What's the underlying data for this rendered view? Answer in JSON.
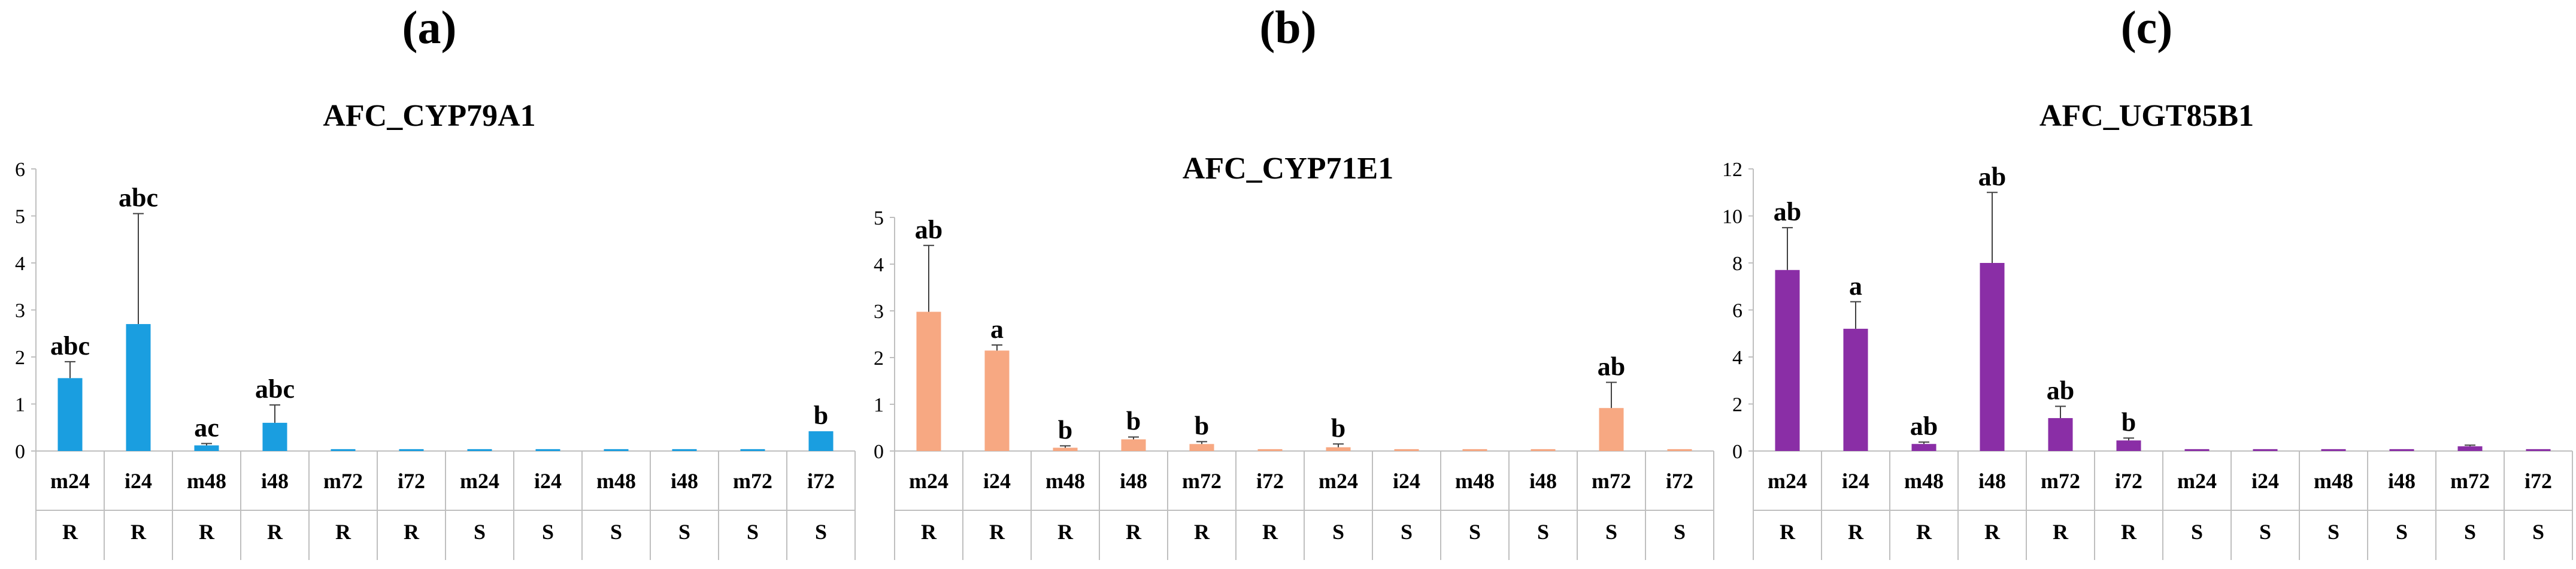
{
  "chart_data": [
    {
      "type": "bar",
      "panel_label": "(a)",
      "title": "AFC_CYP79A1",
      "color": "#1a9ee0",
      "ylim": [
        0,
        6
      ],
      "yticks": [
        0,
        1,
        2,
        3,
        4,
        5,
        6
      ],
      "categories": [
        "m24",
        "i24",
        "m48",
        "i48",
        "m72",
        "i72",
        "m24",
        "i24",
        "m48",
        "i48",
        "m72",
        "i72"
      ],
      "groups": [
        "R",
        "R",
        "R",
        "R",
        "R",
        "R",
        "S",
        "S",
        "S",
        "S",
        "S",
        "S"
      ],
      "values": [
        1.55,
        2.7,
        0.12,
        0.6,
        0.04,
        0.04,
        0.04,
        0.04,
        0.04,
        0.04,
        0.04,
        0.42
      ],
      "errors": [
        0.35,
        2.35,
        0.04,
        0.38,
        0,
        0,
        0,
        0,
        0,
        0,
        0,
        0
      ],
      "labels": [
        "abc",
        "abc",
        "ac",
        "abc",
        "",
        "",
        "",
        "",
        "",
        "",
        "",
        "b"
      ]
    },
    {
      "type": "bar",
      "panel_label": "(b)",
      "title": "AFC_CYP71E1",
      "color": "#f7a882",
      "ylim": [
        0,
        5
      ],
      "yticks": [
        0,
        1,
        2,
        3,
        4,
        5
      ],
      "categories": [
        "m24",
        "i24",
        "m48",
        "i48",
        "m72",
        "i72",
        "m24",
        "i24",
        "m48",
        "i48",
        "m72",
        "i72"
      ],
      "groups": [
        "R",
        "R",
        "R",
        "R",
        "R",
        "R",
        "S",
        "S",
        "S",
        "S",
        "S",
        "S"
      ],
      "values": [
        2.98,
        2.15,
        0.07,
        0.25,
        0.15,
        0.04,
        0.08,
        0.04,
        0.04,
        0.04,
        0.92,
        0.04
      ],
      "errors": [
        1.42,
        0.12,
        0.04,
        0.05,
        0.05,
        0,
        0.07,
        0,
        0,
        0,
        0.55,
        0
      ],
      "labels": [
        "ab",
        "a",
        "b",
        "b",
        "b",
        "",
        "b",
        "",
        "",
        "",
        "ab",
        ""
      ]
    },
    {
      "type": "bar",
      "panel_label": "(c)",
      "title": "AFC_UGT85B1",
      "color": "#8a2ea6",
      "ylim": [
        0,
        12
      ],
      "yticks": [
        0,
        2,
        4,
        6,
        8,
        10,
        12
      ],
      "categories": [
        "m24",
        "i24",
        "m48",
        "i48",
        "m72",
        "i72",
        "m24",
        "i24",
        "m48",
        "i48",
        "m72",
        "i72"
      ],
      "groups": [
        "R",
        "R",
        "R",
        "R",
        "R",
        "R",
        "S",
        "S",
        "S",
        "S",
        "S",
        "S"
      ],
      "values": [
        7.7,
        5.2,
        0.3,
        8.0,
        1.4,
        0.45,
        0.08,
        0.08,
        0.08,
        0.08,
        0.2,
        0.08
      ],
      "errors": [
        1.8,
        1.15,
        0.08,
        3.0,
        0.5,
        0.1,
        0,
        0,
        0,
        0,
        0.05,
        0
      ],
      "labels": [
        "ab",
        "a",
        "ab",
        "ab",
        "ab",
        "b",
        "",
        "",
        "",
        "",
        "",
        ""
      ]
    }
  ]
}
